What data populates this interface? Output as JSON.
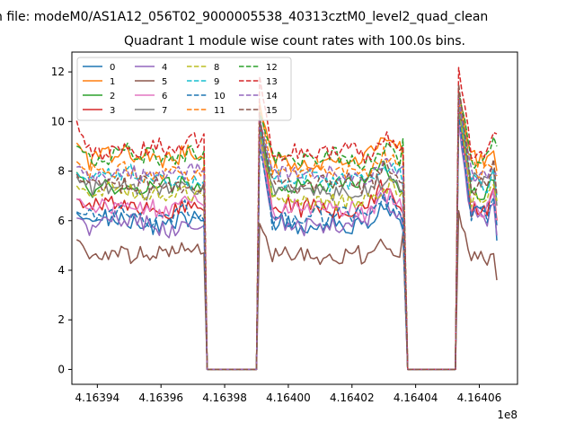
{
  "suptitle": "n file: modeM0/AS1A12_056T02_9000005538_40313cztM0_level2_quad_clean",
  "chart_data": {
    "type": "line",
    "title": "Quadrant 1 module wise count rates with 100.0s bins.",
    "xlabel": "",
    "ylabel": "",
    "x_offset_label": "1e8",
    "xlim": [
      4.163932,
      4.164072
    ],
    "ylim": [
      -0.6,
      12.8
    ],
    "x_ticks": [
      4.16394,
      4.16396,
      4.16398,
      4.164,
      4.16402,
      4.16404,
      4.16406
    ],
    "x_tick_labels": [
      "4.16394",
      "4.16396",
      "4.16398",
      "4.16400",
      "4.16402",
      "4.16404",
      "4.16406"
    ],
    "y_ticks": [
      0,
      2,
      4,
      6,
      8,
      10,
      12
    ],
    "y_tick_labels": [
      "0",
      "2",
      "4",
      "6",
      "8",
      "10",
      "12"
    ],
    "grid": false,
    "legend_position": "top-left",
    "segments": [
      {
        "start": 4.1639335,
        "end": 4.1639735
      },
      {
        "start": 4.163991,
        "end": 4.1640365
      },
      {
        "start": 4.1640535,
        "end": 4.164065
      }
    ],
    "series": [
      {
        "name": "0",
        "color": "#1f77b4",
        "dash": false,
        "levels": [
          6.0,
          6.0,
          6.0
        ],
        "spikes": [
          6.3,
          9.5,
          10.6
        ],
        "ends": [
          6.0,
          5.6,
          5.2
        ]
      },
      {
        "name": "1",
        "color": "#ff7f0e",
        "dash": false,
        "levels": [
          8.5,
          8.5,
          8.5
        ],
        "spikes": [
          9.0,
          10.7,
          11.2
        ],
        "ends": [
          8.5,
          8.6,
          8.0
        ]
      },
      {
        "name": "2",
        "color": "#2ca02c",
        "dash": false,
        "levels": [
          7.2,
          7.2,
          7.2
        ],
        "spikes": [
          8.0,
          10.0,
          10.9
        ],
        "ends": [
          7.5,
          7.2,
          6.8
        ]
      },
      {
        "name": "3",
        "color": "#d62728",
        "dash": false,
        "levels": [
          6.4,
          6.4,
          6.4
        ],
        "spikes": [
          6.8,
          10.0,
          10.8
        ],
        "ends": [
          6.4,
          6.3,
          6.0
        ]
      },
      {
        "name": "4",
        "color": "#9467bd",
        "dash": false,
        "levels": [
          5.8,
          5.8,
          5.8
        ],
        "spikes": [
          6.2,
          9.5,
          10.0
        ],
        "ends": [
          5.8,
          5.8,
          5.4
        ]
      },
      {
        "name": "5",
        "color": "#8c564b",
        "dash": false,
        "levels": [
          4.5,
          4.5,
          4.5
        ],
        "spikes": [
          5.2,
          6.0,
          6.3
        ],
        "ends": [
          4.7,
          5.5,
          3.6
        ]
      },
      {
        "name": "6",
        "color": "#e377c2",
        "dash": false,
        "levels": [
          6.5,
          6.5,
          6.5
        ],
        "spikes": [
          7.0,
          9.2,
          10.2
        ],
        "ends": [
          6.6,
          6.3,
          5.8
        ]
      },
      {
        "name": "7",
        "color": "#7f7f7f",
        "dash": false,
        "levels": [
          7.3,
          7.3,
          7.3
        ],
        "spikes": [
          7.8,
          9.5,
          10.4
        ],
        "ends": [
          7.3,
          7.2,
          6.6
        ]
      },
      {
        "name": "8",
        "color": "#bcbd22",
        "dash": true,
        "levels": [
          7.0,
          7.0,
          7.0
        ],
        "spikes": [
          7.3,
          9.5,
          10.5
        ],
        "ends": [
          7.0,
          7.2,
          6.8
        ]
      },
      {
        "name": "9",
        "color": "#17becf",
        "dash": true,
        "levels": [
          7.6,
          7.6,
          7.6
        ],
        "spikes": [
          8.0,
          9.8,
          10.8
        ],
        "ends": [
          7.6,
          7.4,
          7.0
        ]
      },
      {
        "name": "10",
        "color": "#1f77b4",
        "dash": true,
        "levels": [
          6.1,
          6.1,
          6.1
        ],
        "spikes": [
          6.3,
          9.0,
          10.2
        ],
        "ends": [
          6.0,
          6.0,
          5.8
        ]
      },
      {
        "name": "11",
        "color": "#ff7f0e",
        "dash": true,
        "levels": [
          8.0,
          8.0,
          8.0
        ],
        "spikes": [
          8.5,
          10.5,
          11.0
        ],
        "ends": [
          8.2,
          8.3,
          7.8
        ]
      },
      {
        "name": "12",
        "color": "#2ca02c",
        "dash": true,
        "levels": [
          8.6,
          8.6,
          8.6
        ],
        "spikes": [
          9.0,
          10.5,
          11.3
        ],
        "ends": [
          8.8,
          9.3,
          9.0
        ]
      },
      {
        "name": "13",
        "color": "#d62728",
        "dash": true,
        "levels": [
          8.8,
          8.8,
          8.8
        ],
        "spikes": [
          9.9,
          11.7,
          12.2
        ],
        "ends": [
          9.5,
          9.0,
          9.5
        ]
      },
      {
        "name": "14",
        "color": "#9467bd",
        "dash": true,
        "levels": [
          7.9,
          7.9,
          7.9
        ],
        "spikes": [
          8.2,
          10.0,
          11.0
        ],
        "ends": [
          8.0,
          8.2,
          7.8
        ]
      },
      {
        "name": "15",
        "color": "#8c564b",
        "dash": true,
        "levels": [
          7.4,
          7.4,
          7.4
        ],
        "spikes": [
          7.8,
          10.2,
          11.4
        ],
        "ends": [
          7.5,
          7.5,
          7.0
        ]
      }
    ]
  }
}
